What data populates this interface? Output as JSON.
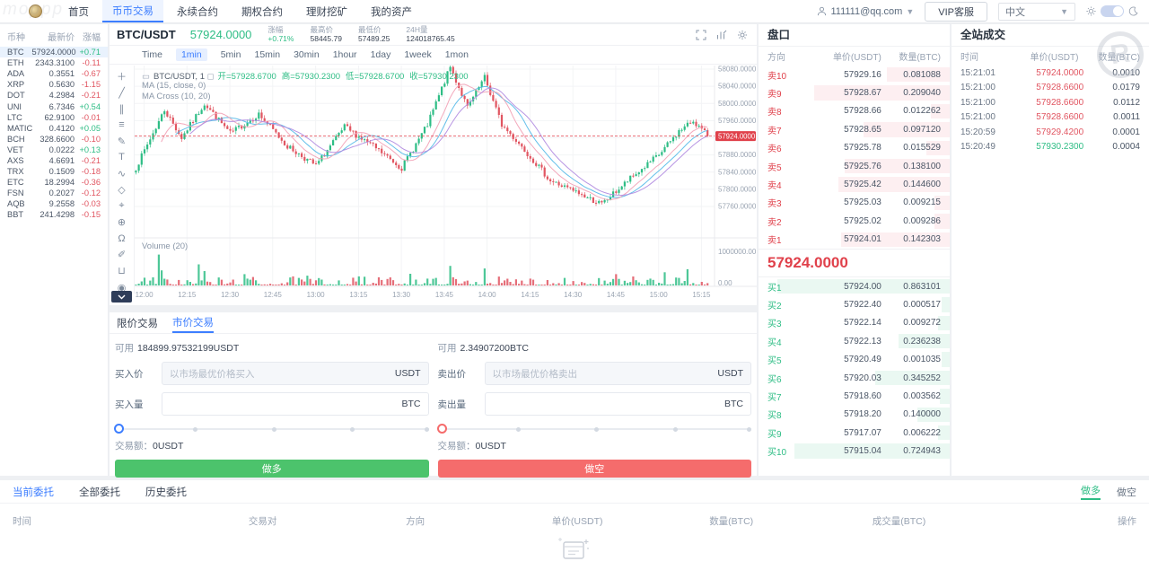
{
  "header": {
    "logo_text": "moppp",
    "nav": [
      "首页",
      "币币交易",
      "永续合约",
      "期权合约",
      "理财挖矿",
      "我的资产"
    ],
    "active_nav": "币币交易",
    "user_email": "111111@qq.com",
    "vip_button": "VIP客服",
    "language": "中文"
  },
  "coin_list": {
    "headers": [
      "币种",
      "最新价",
      "涨幅"
    ],
    "rows": [
      {
        "symbol": "BTC",
        "price": "57924.0000",
        "change": "+0.71",
        "dir": "up",
        "active": true
      },
      {
        "symbol": "ETH",
        "price": "2343.3100",
        "change": "-0.11",
        "dir": "down"
      },
      {
        "symbol": "ADA",
        "price": "0.3551",
        "change": "-0.67",
        "dir": "down"
      },
      {
        "symbol": "XRP",
        "price": "0.5630",
        "change": "-1.15",
        "dir": "down"
      },
      {
        "symbol": "DOT",
        "price": "4.2984",
        "change": "-0.21",
        "dir": "down"
      },
      {
        "symbol": "UNI",
        "price": "6.7346",
        "change": "+0.54",
        "dir": "up"
      },
      {
        "symbol": "LTC",
        "price": "62.9100",
        "change": "-0.01",
        "dir": "down"
      },
      {
        "symbol": "MATIC",
        "price": "0.4120",
        "change": "+0.05",
        "dir": "up"
      },
      {
        "symbol": "BCH",
        "price": "328.6600",
        "change": "-0.10",
        "dir": "down"
      },
      {
        "symbol": "VET",
        "price": "0.0222",
        "change": "+0.13",
        "dir": "up"
      },
      {
        "symbol": "AXS",
        "price": "4.6691",
        "change": "-0.21",
        "dir": "down"
      },
      {
        "symbol": "TRX",
        "price": "0.1509",
        "change": "-0.18",
        "dir": "down"
      },
      {
        "symbol": "ETC",
        "price": "18.2994",
        "change": "-0.36",
        "dir": "down"
      },
      {
        "symbol": "FSN",
        "price": "0.2027",
        "change": "-0.12",
        "dir": "down"
      },
      {
        "symbol": "AQB",
        "price": "9.2558",
        "change": "-0.03",
        "dir": "down"
      },
      {
        "symbol": "BBT",
        "price": "241.4298",
        "change": "-0.15",
        "dir": "down"
      }
    ]
  },
  "ticker": {
    "pair": "BTC/USDT",
    "last_price": "57924.0000",
    "change_label": "涨幅",
    "change_value": "+0.71%",
    "high_label": "最高价",
    "high_value": "58445.79",
    "low_label": "最低价",
    "low_value": "57489.25",
    "vol_label": "24H量",
    "vol_value": "124018765.45"
  },
  "chart": {
    "intervals": [
      "Time",
      "1min",
      "5min",
      "15min",
      "30min",
      "1hour",
      "1day",
      "1week",
      "1mon"
    ],
    "active_interval": "1min",
    "legend_main": "BTC/USDT, 1",
    "legend_ohlc": [
      "开=57928.6700",
      "高=57930.2300",
      "低=57928.6700",
      "收=57930.2300"
    ],
    "ma1_label": "MA (15, close, 0)",
    "ma2_label": "MA Cross (10, 20)",
    "volume_label": "Volume (20)",
    "tools": [
      {
        "name": "crosshair-tool",
        "glyph": "＋"
      },
      {
        "name": "trendline-tool",
        "glyph": "╱"
      },
      {
        "name": "parallel-channel-tool",
        "glyph": "∥"
      },
      {
        "name": "fib-retracement-tool",
        "glyph": "≡"
      },
      {
        "name": "brush-tool",
        "glyph": "✎"
      },
      {
        "name": "text-tool",
        "glyph": "T"
      },
      {
        "name": "pattern-tool",
        "glyph": "∿"
      },
      {
        "name": "position-tool",
        "glyph": "◇"
      },
      {
        "name": "measure-tool",
        "glyph": "⌖"
      },
      {
        "name": "zoom-in-tool",
        "glyph": "⊕"
      },
      {
        "name": "magnet-tool",
        "glyph": "Ω"
      },
      {
        "name": "draw-mode-tool",
        "glyph": "✐"
      },
      {
        "name": "lock-drawings-tool",
        "glyph": "⊔"
      },
      {
        "name": "hide-drawings-tool",
        "glyph": "◉"
      }
    ],
    "chart_data": {
      "type": "candlestick+volume",
      "x_ticks": [
        "12:00",
        "12:15",
        "12:30",
        "12:45",
        "13:00",
        "13:15",
        "13:30",
        "13:45",
        "14:00",
        "14:15",
        "14:30",
        "14:45",
        "15:00",
        "15:15"
      ],
      "price_ticks": [
        58080,
        58040,
        58000,
        57960,
        57920,
        57880,
        57840,
        57800,
        57760
      ],
      "price_tick_decimals": 4,
      "volume_ticks": [
        "1000000.00",
        "0.00"
      ],
      "volume_max": 1000000,
      "current_price": 57924.0,
      "current_price_label": "57924.0000",
      "candle_count": 201,
      "first_tick_index": 3,
      "tick_step": 15,
      "close_anchors": [
        [
          0,
          57850
        ],
        [
          10,
          57985
        ],
        [
          16,
          57920
        ],
        [
          24,
          58000
        ],
        [
          33,
          57930
        ],
        [
          43,
          57975
        ],
        [
          53,
          57900
        ],
        [
          63,
          57855
        ],
        [
          73,
          57945
        ],
        [
          83,
          57900
        ],
        [
          93,
          57850
        ],
        [
          102,
          57950
        ],
        [
          110,
          58085
        ],
        [
          116,
          57990
        ],
        [
          122,
          58060
        ],
        [
          128,
          57950
        ],
        [
          135,
          57900
        ],
        [
          145,
          57820
        ],
        [
          155,
          57790
        ],
        [
          163,
          57765
        ],
        [
          173,
          57825
        ],
        [
          183,
          57880
        ],
        [
          190,
          57935
        ],
        [
          195,
          57960
        ],
        [
          200,
          57924
        ]
      ],
      "volume_spikes": {
        "8": 820000,
        "9": 400000,
        "22": 560000,
        "24": 380000,
        "38": 300000,
        "60": 260000,
        "78": 240000,
        "96": 310000,
        "110": 520000,
        "122": 450000,
        "138": 180000,
        "150": 200000,
        "168": 300000,
        "185": 350000,
        "193": 430000
      },
      "colors": {
        "up": "#2ebd85",
        "down": "#e15561",
        "ma10": "#f2a0b5",
        "ma15": "#53b9e8",
        "ma20": "#b08ae0",
        "current": "#e0414b"
      }
    }
  },
  "order_book": {
    "title": "盘口",
    "headers": [
      "方向",
      "单价(USDT)",
      "数量(BTC)"
    ],
    "asks": [
      {
        "label": "卖10",
        "price": "57929.16",
        "qty": "0.081088",
        "bar": 33
      },
      {
        "label": "卖9",
        "price": "57928.67",
        "qty": "0.209040",
        "bar": 71
      },
      {
        "label": "卖8",
        "price": "57928.66",
        "qty": "0.012262",
        "bar": 10
      },
      {
        "label": "卖7",
        "price": "57928.65",
        "qty": "0.097120",
        "bar": 45
      },
      {
        "label": "卖6",
        "price": "57925.78",
        "qty": "0.015529",
        "bar": 12
      },
      {
        "label": "卖5",
        "price": "57925.76",
        "qty": "0.138100",
        "bar": 55
      },
      {
        "label": "卖4",
        "price": "57925.42",
        "qty": "0.144600",
        "bar": 58
      },
      {
        "label": "卖3",
        "price": "57925.03",
        "qty": "0.009215",
        "bar": 8
      },
      {
        "label": "卖2",
        "price": "57925.02",
        "qty": "0.009286",
        "bar": 8
      },
      {
        "label": "卖1",
        "price": "57924.01",
        "qty": "0.142303",
        "bar": 57
      }
    ],
    "current_price": "57924.0000",
    "bids": [
      {
        "label": "买1",
        "price": "57924.00",
        "qty": "0.863101",
        "bar": 90
      },
      {
        "label": "买2",
        "price": "57922.40",
        "qty": "0.000517",
        "bar": 4
      },
      {
        "label": "买3",
        "price": "57922.14",
        "qty": "0.009272",
        "bar": 6
      },
      {
        "label": "买4",
        "price": "57922.13",
        "qty": "0.236238",
        "bar": 27
      },
      {
        "label": "买5",
        "price": "57920.49",
        "qty": "0.001035",
        "bar": 4
      },
      {
        "label": "买6",
        "price": "57920.03",
        "qty": "0.345252",
        "bar": 39
      },
      {
        "label": "买7",
        "price": "57918.60",
        "qty": "0.003562",
        "bar": 5
      },
      {
        "label": "买8",
        "price": "57918.20",
        "qty": "0.140000",
        "bar": 17
      },
      {
        "label": "买9",
        "price": "57917.07",
        "qty": "0.006222",
        "bar": 6
      },
      {
        "label": "买10",
        "price": "57915.04",
        "qty": "0.724943",
        "bar": 81
      }
    ]
  },
  "trades": {
    "title": "全站成交",
    "headers": [
      "时间",
      "单价(USDT)",
      "数量(BTC)"
    ],
    "watermark_letter": "R",
    "rows": [
      {
        "time": "15:21:01",
        "price": "57924.0000",
        "qty": "0.0010",
        "dir": "down"
      },
      {
        "time": "15:21:00",
        "price": "57928.6600",
        "qty": "0.0179",
        "dir": "down"
      },
      {
        "time": "15:21:00",
        "price": "57928.6600",
        "qty": "0.0112",
        "dir": "down"
      },
      {
        "time": "15:21:00",
        "price": "57928.6600",
        "qty": "0.0011",
        "dir": "down"
      },
      {
        "time": "15:20:59",
        "price": "57929.4200",
        "qty": "0.0001",
        "dir": "down"
      },
      {
        "time": "15:20:49",
        "price": "57930.2300",
        "qty": "0.0004",
        "dir": "up"
      }
    ]
  },
  "trade_forms": {
    "tabs": [
      "限价交易",
      "市价交易"
    ],
    "active_tab": "市价交易",
    "buy": {
      "available_label": "可用",
      "available": "184899.97532199USDT",
      "price_label": "买入价",
      "price_placeholder": "以市场最优价格买入",
      "price_unit": "USDT",
      "amount_label": "买入量",
      "amount_unit": "BTC",
      "total_label": "交易额：",
      "total": "0USDT",
      "button": "做多"
    },
    "sell": {
      "available_label": "可用",
      "available": "2.34907200BTC",
      "price_label": "卖出价",
      "price_placeholder": "以市场最优价格卖出",
      "price_unit": "USDT",
      "amount_label": "卖出量",
      "amount_unit": "BTC",
      "total_label": "交易额：",
      "total": "0USDT",
      "button": "做空"
    }
  },
  "orders_panel": {
    "tabs": [
      "当前委托",
      "全部委托",
      "历史委托"
    ],
    "active_tab": "当前委托",
    "filters": [
      {
        "label": "做多",
        "active": true
      },
      {
        "label": "做空",
        "active": false
      }
    ],
    "headers": [
      "时间",
      "交易对",
      "方向",
      "单价(USDT)",
      "数量(BTC)",
      "成交量(BTC)",
      "操作"
    ]
  }
}
